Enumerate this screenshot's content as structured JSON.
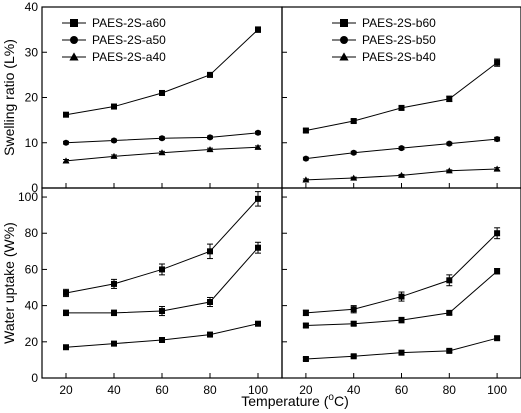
{
  "figure": {
    "xlabel_main": "Temperature (",
    "xlabel_sup": "o",
    "xlabel_end": "C)"
  },
  "chart_data": [
    {
      "id": "top-left",
      "type": "line",
      "ylabel": "Swelling ratio (L%)",
      "x": [
        20,
        40,
        60,
        80,
        100
      ],
      "xlim": [
        10,
        110
      ],
      "ylim": [
        0,
        40
      ],
      "yticks": [
        0,
        10,
        20,
        30,
        40
      ],
      "xticks": [],
      "legend_position": "top-left",
      "series": [
        {
          "name": "PAES-2S-a60",
          "marker": "square",
          "values": [
            16.2,
            18.0,
            21.0,
            25.0,
            35.0
          ],
          "errors": [
            0.4,
            0.5,
            0.5,
            0.5,
            0.6
          ]
        },
        {
          "name": "PAES-2S-a50",
          "marker": "circle",
          "values": [
            10.0,
            10.5,
            11.0,
            11.2,
            12.2
          ],
          "errors": [
            0.3,
            0.3,
            0.3,
            0.3,
            0.3
          ]
        },
        {
          "name": "PAES-2S-a40",
          "marker": "triangle",
          "values": [
            6.0,
            7.0,
            7.8,
            8.5,
            9.0
          ],
          "errors": [
            0.3,
            0.3,
            0.3,
            0.3,
            0.3
          ]
        }
      ]
    },
    {
      "id": "top-right",
      "type": "line",
      "ylabel": "",
      "x": [
        20,
        40,
        60,
        80,
        100
      ],
      "xlim": [
        10,
        110
      ],
      "ylim": [
        0,
        40
      ],
      "yticks": [
        0,
        10,
        20,
        30,
        40
      ],
      "xticks": [],
      "legend_position": "top-center",
      "series": [
        {
          "name": "PAES-2S-b60",
          "marker": "square",
          "values": [
            12.7,
            14.8,
            17.7,
            19.7,
            27.7
          ],
          "errors": [
            0.4,
            0.4,
            0.5,
            0.6,
            0.8
          ]
        },
        {
          "name": "PAES-2S-b50",
          "marker": "circle",
          "values": [
            6.5,
            7.8,
            8.8,
            9.8,
            10.8
          ],
          "errors": [
            0.3,
            0.3,
            0.3,
            0.3,
            0.4
          ]
        },
        {
          "name": "PAES-2S-b40",
          "marker": "triangle",
          "values": [
            1.8,
            2.2,
            2.8,
            3.8,
            4.2
          ],
          "errors": [
            0.2,
            0.2,
            0.2,
            0.2,
            0.3
          ]
        }
      ]
    },
    {
      "id": "bottom-left",
      "type": "line",
      "ylabel": "Water uptake (W%)",
      "x": [
        20,
        40,
        60,
        80,
        100
      ],
      "xlim": [
        10,
        110
      ],
      "ylim": [
        0,
        105
      ],
      "yticks": [
        0,
        20,
        40,
        60,
        80,
        100
      ],
      "xticks": [
        20,
        40,
        60,
        80,
        100
      ],
      "series": [
        {
          "marker": "square",
          "values": [
            47,
            52,
            60,
            70,
            99
          ],
          "errors": [
            2,
            2.5,
            3,
            4,
            4
          ]
        },
        {
          "marker": "square",
          "values": [
            36,
            36,
            37,
            42,
            72
          ],
          "errors": [
            1.5,
            1.5,
            2.5,
            2.5,
            3
          ]
        },
        {
          "marker": "square",
          "values": [
            17,
            19,
            21,
            24,
            30
          ],
          "errors": [
            1,
            1,
            1,
            1,
            1
          ]
        }
      ]
    },
    {
      "id": "bottom-right",
      "type": "line",
      "ylabel": "",
      "x": [
        20,
        40,
        60,
        80,
        100
      ],
      "xlim": [
        10,
        110
      ],
      "ylim": [
        0,
        105
      ],
      "yticks": [
        0,
        20,
        40,
        60,
        80,
        100
      ],
      "xticks": [
        20,
        40,
        60,
        80,
        100
      ],
      "series": [
        {
          "marker": "square",
          "values": [
            36,
            38,
            45,
            54,
            80
          ],
          "errors": [
            1.5,
            2,
            2.5,
            3,
            3
          ]
        },
        {
          "marker": "square",
          "values": [
            29,
            30,
            32,
            36,
            59
          ],
          "errors": [
            1,
            1,
            1.5,
            1,
            1.5
          ]
        },
        {
          "marker": "square",
          "values": [
            10.5,
            12,
            14,
            15,
            22
          ],
          "errors": [
            0.8,
            0.8,
            0.8,
            0.8,
            1
          ]
        }
      ]
    }
  ]
}
